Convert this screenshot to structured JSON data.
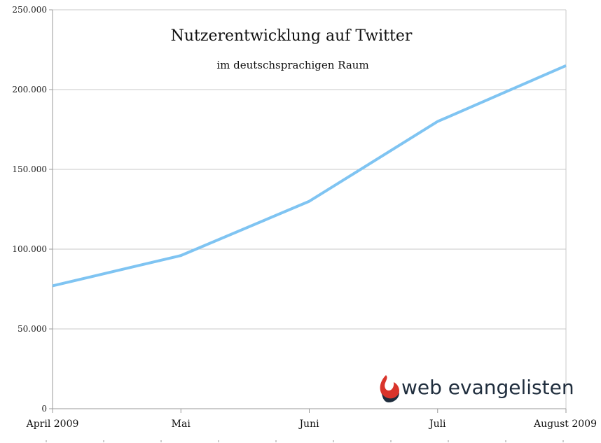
{
  "chart_data": {
    "type": "line",
    "title": "Nutzerentwicklung auf Twitter",
    "subtitle": "im deutschsprachigen Raum",
    "categories": [
      "April 2009",
      "Mai",
      "Juni",
      "Juli",
      "August 2009"
    ],
    "series": [
      {
        "values": [
          77000,
          96000,
          130000,
          180000,
          215000
        ]
      }
    ],
    "ylim": [
      0,
      250000
    ],
    "yticks": [
      0,
      50000,
      100000,
      150000,
      200000,
      250000
    ],
    "ytick_labels": [
      "0",
      "50.000",
      "100.000",
      "150.000",
      "200.000",
      "250.000"
    ],
    "grid": true,
    "line_color": "#7fc4f2",
    "grid_color": "#c8c8c8",
    "axis_color": "#9a9a9a"
  },
  "logo": {
    "text": "web evangelisten",
    "icon": "flame-icon",
    "icon_colors": [
      "#d9342b",
      "#1f2d3d"
    ]
  }
}
